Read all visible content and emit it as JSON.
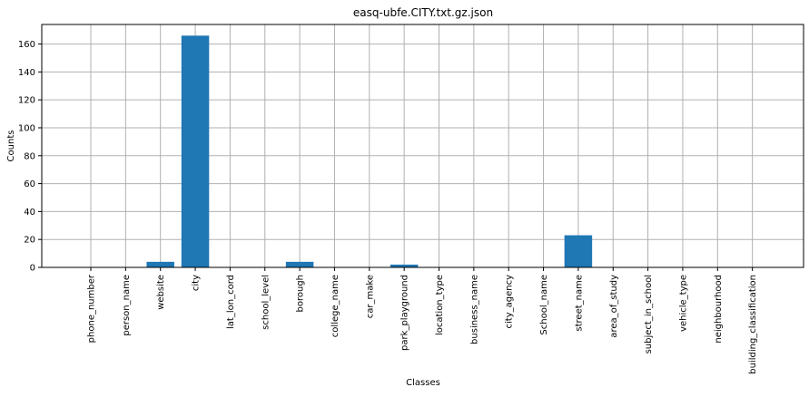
{
  "chart_data": {
    "type": "bar",
    "title": "easq-ubfe.CITY.txt.gz.json",
    "xlabel": "Classes",
    "ylabel": "Counts",
    "categories": [
      "phone_number",
      "person_name",
      "website",
      "city",
      "lat_lon_cord",
      "school_level",
      "borough",
      "college_name",
      "car_make",
      "park_playground",
      "location_type",
      "business_name",
      "city_agency",
      "School_name",
      "street_name",
      "area_of_study",
      "subject_in_school",
      "vehicle_type",
      "neighbourhood",
      "building_classification"
    ],
    "values": [
      0,
      0,
      4,
      166,
      0,
      0,
      4,
      0,
      0,
      2,
      0,
      0,
      0,
      0,
      23,
      0,
      0,
      0,
      0,
      0
    ],
    "ylim": [
      0,
      174
    ],
    "yticks": [
      0,
      20,
      40,
      60,
      80,
      100,
      120,
      140,
      160
    ],
    "grid": true,
    "bar_color": "#1f77b4"
  }
}
